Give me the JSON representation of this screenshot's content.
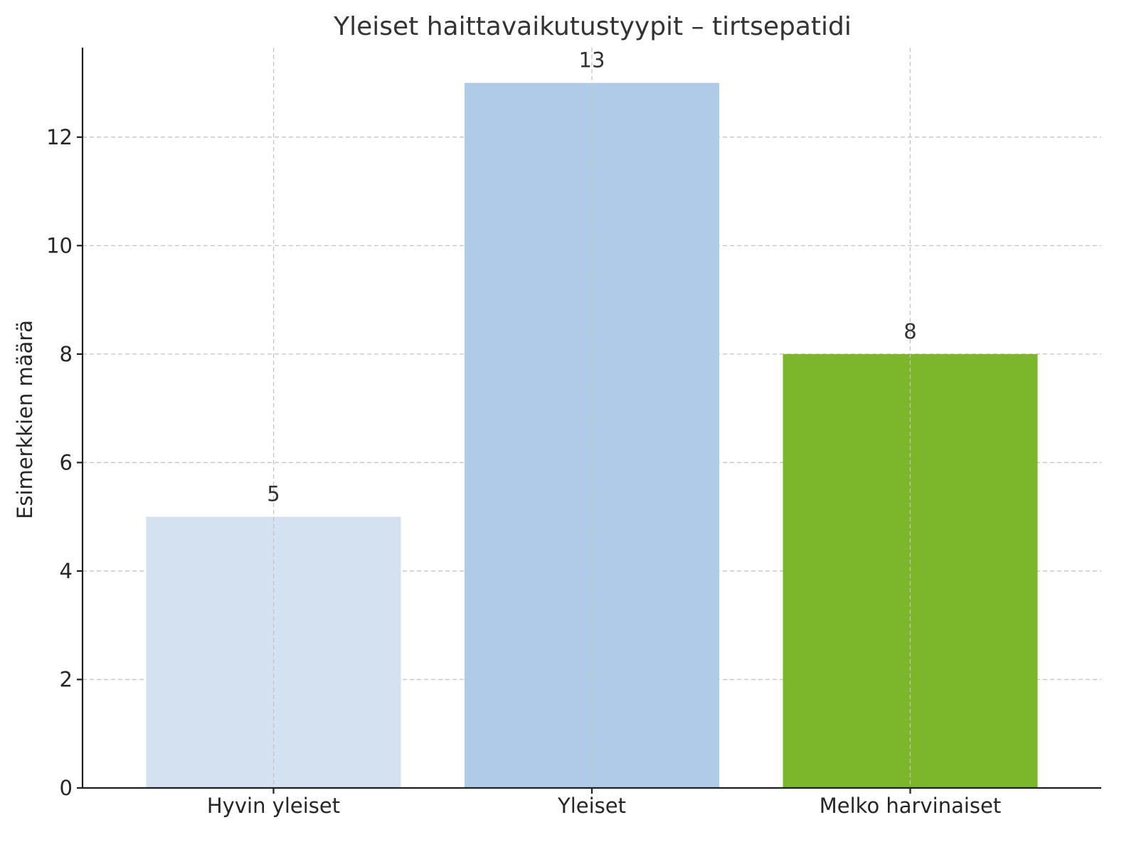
{
  "chart_data": {
    "type": "bar",
    "title": "Yleiset haittavaikutustyypit – tirtsepatidi",
    "xlabel": "",
    "ylabel": "Esimerkkien määrä",
    "categories": [
      "Hyvin yleiset",
      "Yleiset",
      "Melko harvinaiset"
    ],
    "values": [
      5,
      13,
      8
    ],
    "value_labels": [
      "5",
      "13",
      "8"
    ],
    "bar_colors": [
      "#d4e1f1",
      "#aecbe7",
      "#7cb72a"
    ],
    "ylim": [
      0,
      13.65
    ],
    "yticks": [
      0,
      2,
      4,
      6,
      8,
      10,
      12
    ],
    "ytick_labels": [
      "0",
      "2",
      "4",
      "6",
      "8",
      "10",
      "12"
    ],
    "grid": true,
    "legend": "none"
  }
}
